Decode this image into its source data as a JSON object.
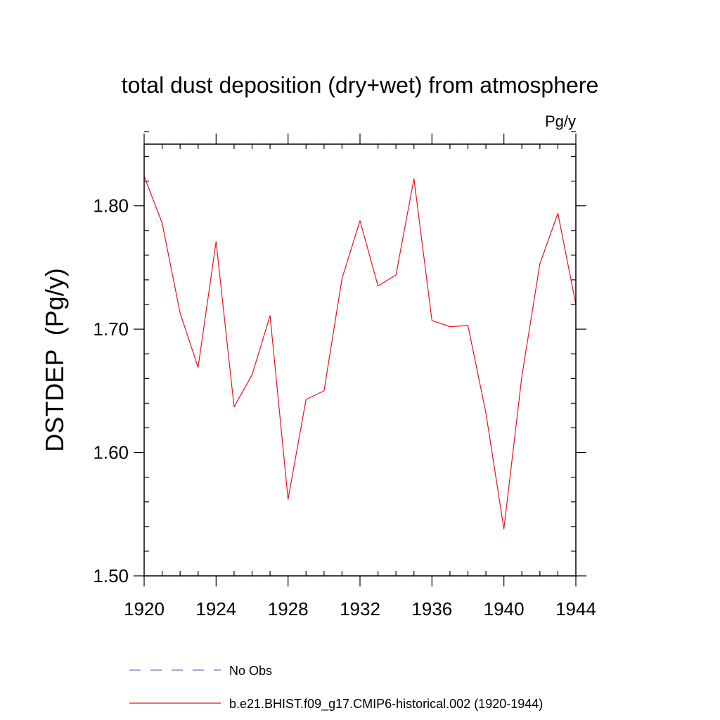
{
  "chart_data": {
    "type": "line",
    "title": "total dust deposition (dry+wet) from atmosphere",
    "units_label": "Pg/y",
    "xlabel": "",
    "ylabel": "DSTDEP  (Pg/y)",
    "xlim": [
      1920,
      1944
    ],
    "ylim": [
      1.5,
      1.85
    ],
    "x_ticks": [
      1920,
      1924,
      1928,
      1932,
      1936,
      1940,
      1944
    ],
    "x_tick_labels": [
      "1920",
      "1924",
      "1928",
      "1932",
      "1936",
      "1940",
      "1944"
    ],
    "y_ticks": [
      1.5,
      1.6,
      1.7,
      1.8
    ],
    "y_tick_labels": [
      "1.50",
      "1.60",
      "1.70",
      "1.80"
    ],
    "grid": false,
    "legend_position": "bottom",
    "legend": [
      {
        "label": "No Obs",
        "color": "#7b72b8",
        "style": "dashed"
      },
      {
        "label": "b.e21.BHIST.f09_g17.CMIP6-historical.002 (1920-1944)",
        "color": "#e8121b",
        "style": "solid"
      }
    ],
    "series": [
      {
        "name": "b.e21.BHIST.f09_g17.CMIP6-historical.002 (1920-1944)",
        "color": "#e8121b",
        "x": [
          1920,
          1921,
          1922,
          1923,
          1924,
          1925,
          1926,
          1927,
          1928,
          1929,
          1930,
          1931,
          1932,
          1933,
          1934,
          1935,
          1936,
          1937,
          1938,
          1939,
          1940,
          1941,
          1942,
          1943,
          1944
        ],
        "values": [
          1.824,
          1.786,
          1.713,
          1.669,
          1.771,
          1.637,
          1.663,
          1.711,
          1.562,
          1.643,
          1.65,
          1.741,
          1.788,
          1.735,
          1.744,
          1.822,
          1.707,
          1.702,
          1.703,
          1.632,
          1.538,
          1.662,
          1.753,
          1.794,
          1.72
        ]
      }
    ]
  }
}
